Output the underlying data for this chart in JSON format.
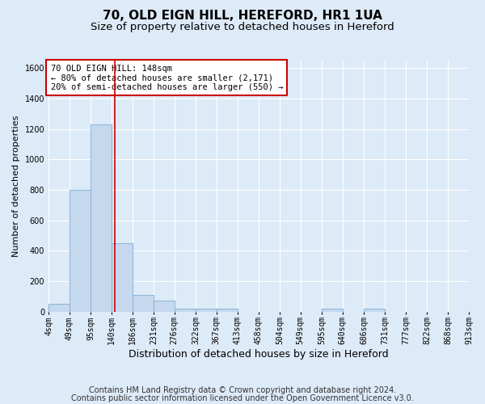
{
  "title": "70, OLD EIGN HILL, HEREFORD, HR1 1UA",
  "subtitle": "Size of property relative to detached houses in Hereford",
  "xlabel": "Distribution of detached houses by size in Hereford",
  "ylabel": "Number of detached properties",
  "bin_edges": [
    4,
    49,
    95,
    140,
    186,
    231,
    276,
    322,
    367,
    413,
    458,
    504,
    549,
    595,
    640,
    686,
    731,
    777,
    822,
    868,
    913
  ],
  "bar_heights": [
    50,
    800,
    1230,
    450,
    110,
    75,
    20,
    20,
    20,
    0,
    0,
    0,
    0,
    20,
    0,
    20,
    0,
    0,
    0,
    0
  ],
  "bar_color": "#c5d8ee",
  "bar_edge_color": "#7aafd4",
  "background_color": "#ddeaf7",
  "grid_color": "#ffffff",
  "vline_x": 148,
  "vline_color": "#cc0000",
  "annotation_text": "70 OLD EIGN HILL: 148sqm\n← 80% of detached houses are smaller (2,171)\n20% of semi-detached houses are larger (550) →",
  "annotation_box_color": "#cc0000",
  "ylim": [
    0,
    1650
  ],
  "yticks": [
    0,
    200,
    400,
    600,
    800,
    1000,
    1200,
    1400,
    1600
  ],
  "footer_line1": "Contains HM Land Registry data © Crown copyright and database right 2024.",
  "footer_line2": "Contains public sector information licensed under the Open Government Licence v3.0.",
  "title_fontsize": 11,
  "subtitle_fontsize": 9.5,
  "xlabel_fontsize": 9,
  "ylabel_fontsize": 8,
  "tick_fontsize": 7,
  "footer_fontsize": 7,
  "annotation_fontsize": 7.5
}
